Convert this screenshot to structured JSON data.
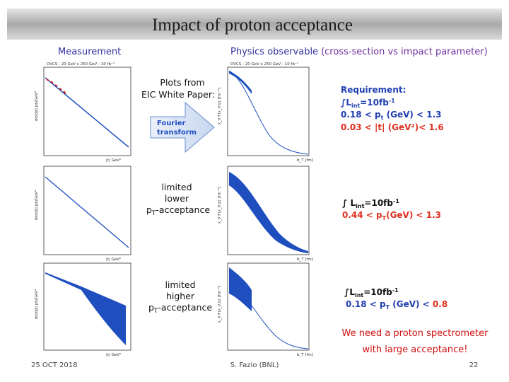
{
  "header": {
    "title": "Impact of proton acceptance"
  },
  "columns": {
    "left": "Measurement",
    "right_main": "Physics observable",
    "right_sub": "(cross-section vs impact parameter)"
  },
  "plots": {
    "header": "DVCS - 20 GeV x 250 GeV - 10 fb⁻¹",
    "left_xlabel": "|t| GeV²",
    "left_ylabel": "dσ/d|t| pb/GeV²",
    "right_xlabel": "b_T [fm]",
    "right_ylabel": "x_V F(x_V,b) [fm⁻²]"
  },
  "middle": {
    "source": [
      "Plots from",
      "EIC White Paper:"
    ],
    "arrow": [
      "Fourier",
      "transform"
    ],
    "lower": [
      "limited",
      "lower",
      "p",
      "T",
      "-acceptance"
    ],
    "higher": [
      "limited",
      "higher",
      "p",
      "T",
      "-acceptance"
    ]
  },
  "requirements": {
    "top": {
      "heading": "Requirement:",
      "lumi": [
        "∫L",
        "int",
        "=10fb",
        "-1"
      ],
      "pt": [
        "0.18 < p",
        "t",
        " (GeV) < 1.3"
      ],
      "t": "0.03 < |t| (GeV²)< 1.6"
    },
    "middle": {
      "lumi": [
        "∫ L",
        "int",
        "=10fb",
        "-1"
      ],
      "pt": [
        "0.44 < p",
        "T",
        "(GeV) < 1.3"
      ]
    },
    "bottom": {
      "lumi": [
        "∫L",
        "int",
        "=10fb",
        "-1"
      ],
      "pt": [
        "0.18 < p",
        "T",
        " (GeV) < ",
        "0.8"
      ]
    }
  },
  "conclusion": [
    "We need a proton spectrometer",
    "with large acceptance!"
  ],
  "footer": {
    "date": "25 OCT 2018",
    "author": "S. Fazio (BNL)",
    "page": "22"
  }
}
